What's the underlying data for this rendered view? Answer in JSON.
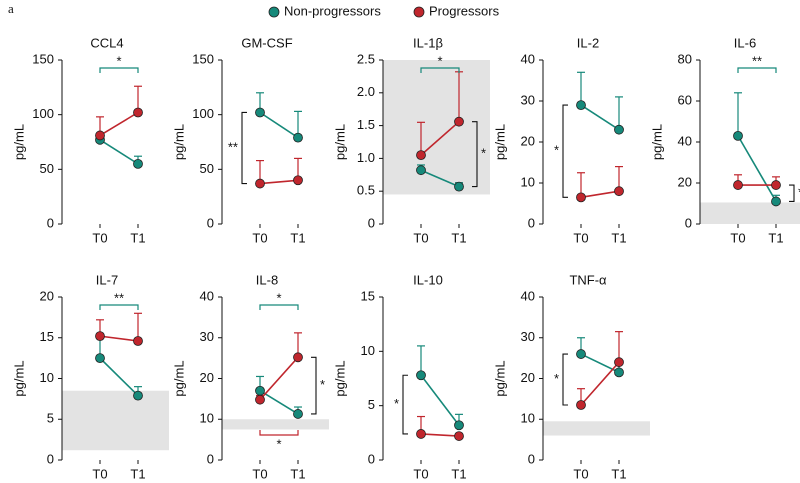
{
  "panel_label": "a",
  "chart_data": [
    {
      "type": "line",
      "title": "CCL4",
      "ylabel": "pg/mL",
      "categories": [
        "T0",
        "T1"
      ],
      "ylim": [
        0,
        150
      ],
      "yticks": [
        0,
        50,
        100,
        150
      ],
      "series": [
        {
          "name": "Non-progressors",
          "color": "#16897a",
          "values": [
            77,
            55
          ],
          "errors": [
            6,
            7
          ]
        },
        {
          "name": "Progressors",
          "color": "#c0262d",
          "values": [
            81,
            102
          ],
          "errors": [
            17,
            24
          ]
        }
      ],
      "annotations": [
        {
          "text": "*",
          "series": 0
        }
      ]
    },
    {
      "type": "line",
      "title": "GM-CSF",
      "ylabel": "pg/mL",
      "categories": [
        "T0",
        "T1"
      ],
      "ylim": [
        0,
        150
      ],
      "yticks": [
        0,
        50,
        100,
        150
      ],
      "series": [
        {
          "color": "#16897a",
          "values": [
            102,
            79
          ],
          "errors": [
            18,
            24
          ]
        },
        {
          "color": "#c0262d",
          "values": [
            37,
            40
          ],
          "errors": [
            21,
            20
          ]
        }
      ],
      "annotations": [
        {
          "text": "**",
          "category": 0
        }
      ]
    },
    {
      "type": "line",
      "title": "IL-1β",
      "ylabel": "pg/mL",
      "categories": [
        "T0",
        "T1"
      ],
      "ylim": [
        0,
        2.5
      ],
      "yticks": [
        0,
        0.5,
        {
          "value": 1,
          "label": "1.0"
        },
        1.5,
        {
          "value": 2,
          "label": "2.0"
        },
        2.5
      ],
      "reference_range": [
        0.45,
        2.5
      ],
      "series": [
        {
          "color": "#16897a",
          "values": [
            0.82,
            0.57
          ],
          "errors": [
            0.08,
            0.06
          ]
        },
        {
          "color": "#c0262d",
          "values": [
            1.05,
            1.56
          ],
          "errors": [
            0.5,
            0.76
          ]
        }
      ],
      "annotations": [
        {
          "text": "*",
          "series": 0
        },
        {
          "text": "*",
          "category": 1
        }
      ]
    },
    {
      "type": "line",
      "title": "IL-2",
      "ylabel": "pg/mL",
      "categories": [
        "T0",
        "T1"
      ],
      "ylim": [
        0,
        40
      ],
      "yticks": [
        0,
        10,
        20,
        30,
        40
      ],
      "series": [
        {
          "color": "#16897a",
          "values": [
            29,
            23
          ],
          "errors": [
            8,
            8
          ]
        },
        {
          "color": "#c0262d",
          "values": [
            6.5,
            8
          ],
          "errors": [
            6,
            6
          ]
        }
      ],
      "annotations": [
        {
          "text": "*",
          "category": 0
        }
      ]
    },
    {
      "type": "line",
      "title": "IL-6",
      "ylabel": "pg/mL",
      "categories": [
        "T0",
        "T1"
      ],
      "ylim": [
        0,
        80
      ],
      "yticks": [
        0,
        20,
        40,
        60,
        80
      ],
      "reference_range": [
        0,
        10.5
      ],
      "series": [
        {
          "color": "#16897a",
          "values": [
            43,
            11
          ],
          "errors": [
            21,
            3
          ]
        },
        {
          "color": "#c0262d",
          "values": [
            19,
            19
          ],
          "errors": [
            5,
            4
          ]
        }
      ],
      "annotations": [
        {
          "text": "**",
          "series": 0
        },
        {
          "text": "**",
          "category": 1
        }
      ]
    },
    {
      "type": "line",
      "title": "IL-7",
      "ylabel": "pg/mL",
      "categories": [
        "T0",
        "T1"
      ],
      "ylim": [
        0,
        20
      ],
      "yticks": [
        0,
        5,
        10,
        15,
        20
      ],
      "reference_range": [
        1.2,
        8.5
      ],
      "series": [
        {
          "color": "#16897a",
          "values": [
            12.5,
            7.9
          ],
          "errors": [
            2.5,
            1.1
          ]
        },
        {
          "color": "#c0262d",
          "values": [
            15.2,
            14.6
          ],
          "errors": [
            2,
            3.4
          ]
        }
      ],
      "annotations": [
        {
          "text": "**",
          "series": 0
        }
      ]
    },
    {
      "type": "line",
      "title": "IL-8",
      "ylabel": "pg/mL",
      "categories": [
        "T0",
        "T1"
      ],
      "ylim": [
        0,
        40
      ],
      "yticks": [
        0,
        10,
        20,
        30,
        40
      ],
      "reference_range": [
        7.5,
        10
      ],
      "series": [
        {
          "color": "#16897a",
          "values": [
            17,
            11.3
          ],
          "errors": [
            3.5,
            1.7
          ]
        },
        {
          "color": "#c0262d",
          "values": [
            14.8,
            25.2
          ],
          "errors": [
            1,
            6
          ]
        }
      ],
      "annotations": [
        {
          "text": "*",
          "series": 0
        },
        {
          "text": "*",
          "category": 1
        },
        {
          "text": "*",
          "series": 1
        }
      ]
    },
    {
      "type": "line",
      "title": "IL-10",
      "ylabel": "pg/mL",
      "categories": [
        "T0",
        "T1"
      ],
      "ylim": [
        0,
        15
      ],
      "yticks": [
        0,
        5,
        10,
        15
      ],
      "series": [
        {
          "color": "#16897a",
          "values": [
            7.8,
            3.2
          ],
          "errors": [
            2.7,
            1
          ]
        },
        {
          "color": "#c0262d",
          "values": [
            2.4,
            2.2
          ],
          "errors": [
            1.6,
            0.2
          ]
        }
      ],
      "annotations": [
        {
          "text": "*",
          "category": 0
        }
      ]
    },
    {
      "type": "line",
      "title": "TNF-α",
      "ylabel": "pg/mL",
      "categories": [
        "T0",
        "T1"
      ],
      "ylim": [
        0,
        40
      ],
      "yticks": [
        0,
        10,
        20,
        30,
        40
      ],
      "reference_range": [
        6,
        9.5
      ],
      "series": [
        {
          "color": "#16897a",
          "values": [
            26,
            21.5
          ],
          "errors": [
            4,
            2.5
          ]
        },
        {
          "color": "#c0262d",
          "values": [
            13.5,
            24
          ],
          "errors": [
            4,
            7.5
          ]
        }
      ],
      "annotations": [
        {
          "text": "*",
          "category": 0
        }
      ]
    }
  ]
}
